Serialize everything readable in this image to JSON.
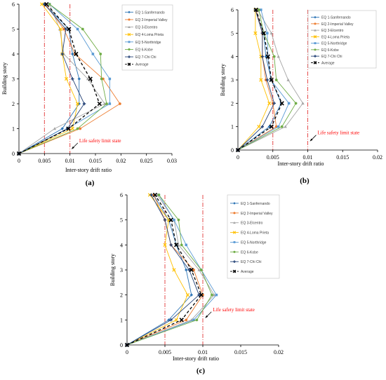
{
  "chart_data": [
    {
      "panel_label": "(a)",
      "type": "line",
      "xlabel": "Inter-story drift ratio",
      "ylabel": "Building story",
      "xlim": [
        0,
        0.03
      ],
      "ylim": [
        0,
        6
      ],
      "xticks": [
        0,
        0.005,
        0.01,
        0.015,
        0.02,
        0.025,
        0.03
      ],
      "xtick_labels": [
        "0",
        "0.005",
        "0.01",
        "0.015",
        "0.02",
        "0.025",
        "0.03"
      ],
      "yticks": [
        0,
        1,
        2,
        3,
        4,
        5,
        6
      ],
      "ytick_labels": [
        "0",
        "1",
        "2",
        "3",
        "4",
        "5",
        "6"
      ],
      "grid": false,
      "legend": "top-right",
      "story": [
        0,
        1,
        2,
        3,
        4,
        5,
        6
      ],
      "limit_lines": [
        0.005,
        0.01
      ],
      "annotation": {
        "text": "Life safety limit state",
        "x": 0.0103,
        "y": 0.2
      },
      "series": [
        {
          "name": "EQ 1-Sanfernando",
          "values": [
            0,
            0.0085,
            0.0118,
            0.0118,
            0.0105,
            0.0098,
            0.005
          ]
        },
        {
          "name": "EQ 2-Imperial Valley",
          "values": [
            0,
            0.012,
            0.0198,
            0.0165,
            0.011,
            0.0088,
            0.0052
          ]
        },
        {
          "name": "EQ 3-Elcentro",
          "values": [
            0,
            0.007,
            0.0168,
            0.0135,
            0.0088,
            0.008,
            0.006
          ]
        },
        {
          "name": "EQ 4-Loma Prieta",
          "values": [
            0,
            0.0105,
            0.0115,
            0.0093,
            0.0085,
            0.0082,
            0.0045
          ]
        },
        {
          "name": "EQ 5-Northridge",
          "values": [
            0,
            0.0095,
            0.0178,
            0.0178,
            0.0145,
            0.0115,
            0.006
          ]
        },
        {
          "name": "EQ 6-Kobe",
          "values": [
            0,
            0.0115,
            0.0172,
            0.0162,
            0.016,
            0.0125,
            0.006
          ]
        },
        {
          "name": "EQ 7-Chi Chi",
          "values": [
            0,
            0.0095,
            0.0128,
            0.0105,
            0.0085,
            0.0092,
            0.005
          ]
        },
        {
          "name": "Average",
          "values": [
            0,
            0.0097,
            0.0158,
            0.014,
            0.0112,
            0.0098,
            0.0054
          ]
        }
      ]
    },
    {
      "panel_label": "(b)",
      "type": "line",
      "xlabel": "Inter-story drift ratio",
      "ylabel": "Building story",
      "xlim": [
        0,
        0.02
      ],
      "ylim": [
        0,
        6
      ],
      "xticks": [
        0,
        0.005,
        0.01,
        0.015,
        0.02
      ],
      "xtick_labels": [
        "0",
        "0.005",
        "0.01",
        "0.015",
        "0.02"
      ],
      "yticks": [
        0,
        1,
        2,
        3,
        4,
        5,
        6
      ],
      "ytick_labels": [
        "0",
        "1",
        "2",
        "3",
        "4",
        "5",
        "6"
      ],
      "grid": false,
      "legend": "top-right",
      "story": [
        0,
        1,
        2,
        3,
        4,
        5,
        6
      ],
      "limit_lines": [
        0.005,
        0.01
      ],
      "annotation": {
        "text": "Life safety limit state",
        "x": 0.0103,
        "y": 0.4
      },
      "series": [
        {
          "name": "EQ 1-Sanfernando",
          "values": [
            0,
            0.0045,
            0.0062,
            0.0048,
            0.004,
            0.0037,
            0.0025
          ]
        },
        {
          "name": "EQ 2-Imperial Valley",
          "values": [
            0,
            0.0055,
            0.005,
            0.004,
            0.0035,
            0.0035,
            0.0026
          ]
        },
        {
          "name": "EQ 3-Elcentro",
          "values": [
            0,
            0.0068,
            0.0093,
            0.0072,
            0.0058,
            0.0048,
            0.0028
          ]
        },
        {
          "name": "EQ 4-Loma Prieta",
          "values": [
            0,
            0.003,
            0.0045,
            0.0033,
            0.0033,
            0.0025,
            0.0025
          ]
        },
        {
          "name": "EQ 5-Northridge",
          "values": [
            0,
            0.0058,
            0.0073,
            0.0047,
            0.0043,
            0.0042,
            0.0033
          ]
        },
        {
          "name": "EQ 6-Kobe",
          "values": [
            0,
            0.0063,
            0.0083,
            0.0055,
            0.0052,
            0.0037,
            0.003
          ]
        },
        {
          "name": "EQ 7-Chi Chi",
          "values": [
            0,
            0.0035,
            0.0052,
            0.0042,
            0.0035,
            0.0035,
            0.0025
          ]
        },
        {
          "name": "Average",
          "values": [
            0,
            0.0048,
            0.0063,
            0.0048,
            0.0043,
            0.0037,
            0.0026
          ]
        }
      ]
    },
    {
      "panel_label": "(c)",
      "type": "line",
      "xlabel": "Inter-story drift ratio",
      "ylabel": "Building story",
      "xlim": [
        0,
        0.02
      ],
      "ylim": [
        0,
        6
      ],
      "xticks": [
        0,
        0.005,
        0.01,
        0.015,
        0.02
      ],
      "xtick_labels": [
        "0",
        "0.005",
        "0.01",
        "0.015",
        "0.02"
      ],
      "yticks": [
        0,
        1,
        2,
        3,
        4,
        5,
        6
      ],
      "ytick_labels": [
        "0",
        "1",
        "2",
        "3",
        "4",
        "5",
        "6"
      ],
      "grid": false,
      "legend": "top-right",
      "story": [
        0,
        1,
        2,
        3,
        4,
        5,
        6
      ],
      "limit_lines": [
        0.005,
        0.01
      ],
      "annotation": {
        "text": "Life safety limit state",
        "x": 0.0103,
        "y": 1.1
      },
      "series": [
        {
          "name": "EQ 1-Sanfernando",
          "values": [
            0,
            0.0055,
            0.0085,
            0.0078,
            0.0065,
            0.0055,
            0.0035
          ]
        },
        {
          "name": "EQ 2-Imperial Valley",
          "values": [
            0,
            0.0078,
            0.01,
            0.0088,
            0.0058,
            0.005,
            0.0035
          ]
        },
        {
          "name": "EQ 3-Elcentro",
          "values": [
            0,
            0.0085,
            0.0115,
            0.0095,
            0.0068,
            0.0062,
            0.004
          ]
        },
        {
          "name": "EQ 4-Loma Prieta",
          "values": [
            0,
            0.0065,
            0.008,
            0.0062,
            0.005,
            0.0055,
            0.003
          ]
        },
        {
          "name": "EQ 5-Northridge",
          "values": [
            0,
            0.0088,
            0.0118,
            0.0098,
            0.0078,
            0.0062,
            0.0042
          ]
        },
        {
          "name": "EQ 6-Kobe",
          "values": [
            0,
            0.0092,
            0.0112,
            0.0098,
            0.0072,
            0.0068,
            0.0042
          ]
        },
        {
          "name": "EQ 7-Chi Chi",
          "values": [
            0,
            0.0058,
            0.0095,
            0.0082,
            0.0058,
            0.005,
            0.0032
          ]
        },
        {
          "name": "Average",
          "values": [
            0,
            0.0072,
            0.0098,
            0.0085,
            0.0065,
            0.0058,
            0.0037
          ]
        }
      ]
    }
  ],
  "colors": {
    "series": [
      "#2e75b6",
      "#ed7d31",
      "#a5a5a5",
      "#ffc000",
      "#5b9bd5",
      "#70ad47",
      "#264478",
      "#000000"
    ],
    "limit_line": "#e64b4b",
    "annotation_text": "#ff0000",
    "axis": "#000000",
    "legend_border": "#bfbfbf"
  }
}
